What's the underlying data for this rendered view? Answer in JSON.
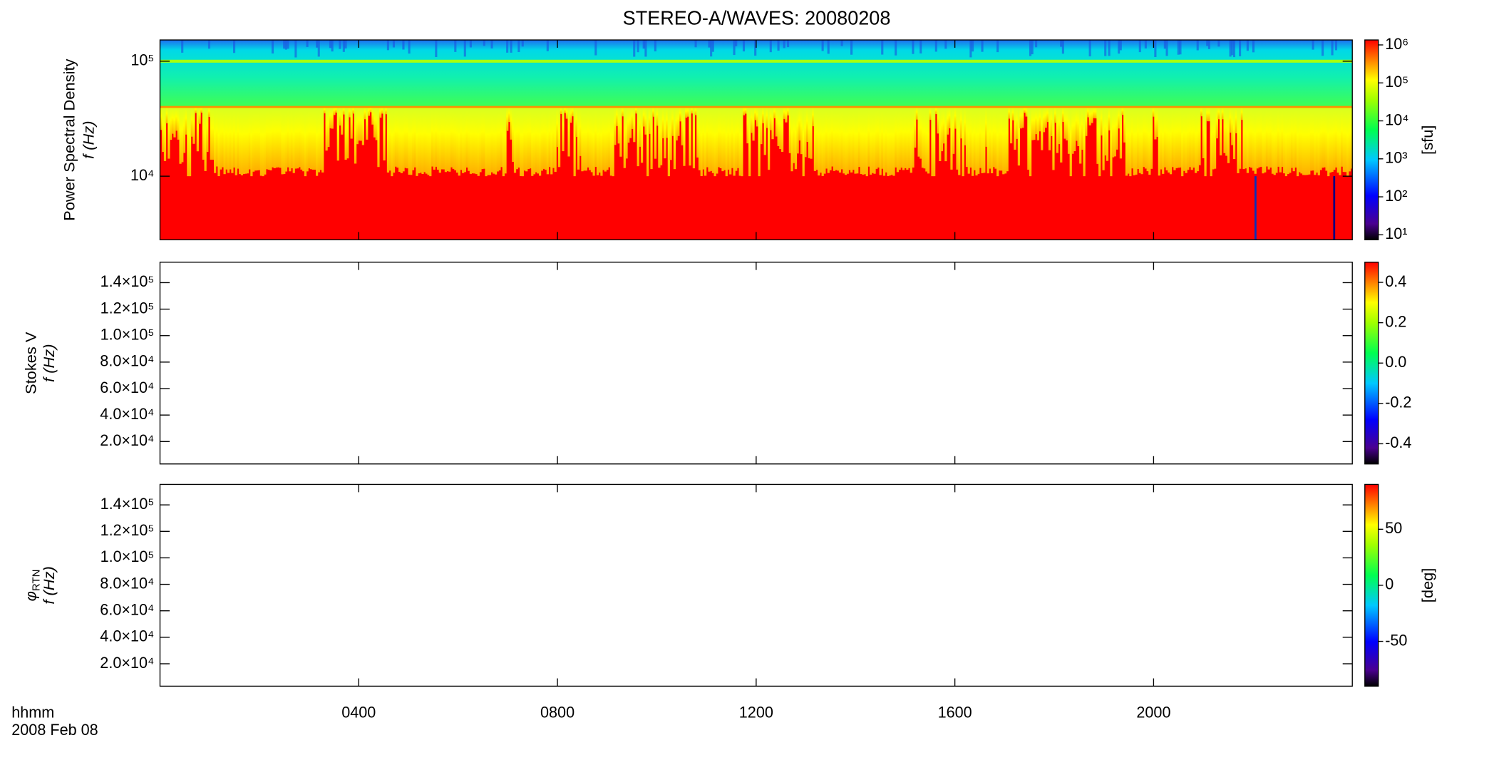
{
  "title": "STEREO-A/WAVES: 20080208",
  "xaxis": {
    "label": "hhmm",
    "date": "2008 Feb 08",
    "lim": [
      0,
      24
    ],
    "ticks": [
      {
        "value": 4,
        "label": "0400"
      },
      {
        "value": 8,
        "label": "0800"
      },
      {
        "value": 12,
        "label": "1200"
      },
      {
        "value": 16,
        "label": "1600"
      },
      {
        "value": 20,
        "label": "2000"
      }
    ]
  },
  "chart_data": [
    {
      "type": "spectrogram",
      "ylabel": [
        "Power Spectral Density",
        "f (Hz)"
      ],
      "yscale": "log",
      "ylim": [
        2800,
        153000
      ],
      "yticks": [
        {
          "value": 10000,
          "label": "10⁴"
        },
        {
          "value": 100000,
          "label": "10⁵"
        }
      ],
      "colorbar": {
        "scale": "log",
        "lim": [
          7.4,
          1350000
        ],
        "label": "[sfu]",
        "ticks": [
          {
            "value": 10,
            "label": "10¹"
          },
          {
            "value": 100,
            "label": "10²"
          },
          {
            "value": 1000,
            "label": "10³"
          },
          {
            "value": 10000,
            "label": "10⁴"
          },
          {
            "value": 100000,
            "label": "10⁵"
          },
          {
            "value": 1000000,
            "label": "10⁶"
          }
        ]
      }
    },
    {
      "type": "blank",
      "ylabel": [
        "Stokes V",
        "f (Hz)"
      ],
      "yscale": "linear",
      "ylim": [
        3070,
        155460
      ],
      "yticks": [
        {
          "value": 20000,
          "label": "2.0×10⁴"
        },
        {
          "value": 40000,
          "label": "4.0×10⁴"
        },
        {
          "value": 60000,
          "label": "6.0×10⁴"
        },
        {
          "value": 80000,
          "label": "8.0×10⁴"
        },
        {
          "value": 100000,
          "label": "1.0×10⁵"
        },
        {
          "value": 120000,
          "label": "1.2×10⁵"
        },
        {
          "value": 140000,
          "label": "1.4×10⁵"
        }
      ],
      "colorbar": {
        "scale": "linear",
        "lim": [
          -0.5,
          0.5
        ],
        "ticks": [
          -0.4,
          -0.2,
          {
            "value": 0,
            "label": "0.0"
          },
          0.2,
          0.4
        ]
      }
    },
    {
      "type": "blank",
      "ylabel": [
        "φ",
        "RTN",
        "f (Hz)"
      ],
      "yscale": "linear",
      "ylim": [
        3070,
        155460
      ],
      "yticks": [
        {
          "value": 20000,
          "label": "2.0×10⁴"
        },
        {
          "value": 40000,
          "label": "4.0×10⁴"
        },
        {
          "value": 60000,
          "label": "6.0×10⁴"
        },
        {
          "value": 80000,
          "label": "8.0×10⁴"
        },
        {
          "value": 100000,
          "label": "1.0×10⁵"
        },
        {
          "value": 120000,
          "label": "1.2×10⁵"
        },
        {
          "value": 140000,
          "label": "1.4×10⁵"
        }
      ],
      "colorbar": {
        "scale": "linear",
        "lim": [
          -90,
          90
        ],
        "label": "[deg]",
        "ticks": [
          -50,
          0,
          50
        ]
      }
    }
  ]
}
